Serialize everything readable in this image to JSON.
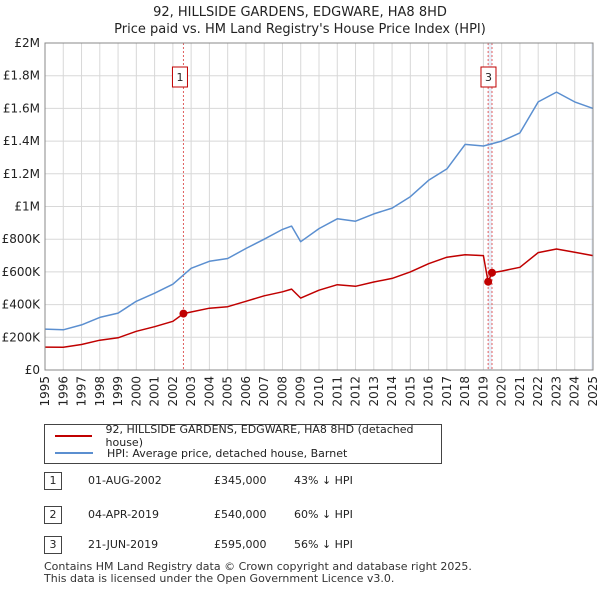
{
  "title": {
    "line1": "92, HILLSIDE GARDENS, EDGWARE, HA8 8HD",
    "line2": "Price paid vs. HM Land Registry's House Price Index (HPI)"
  },
  "colors": {
    "property": "#c00000",
    "hpi": "#5b8fd0",
    "marker_line": "#e06060",
    "grid": "#d8d8d8",
    "shade": "#e8eef8"
  },
  "chart_data": {
    "type": "line",
    "title": "Price paid vs. HM Land Registry's House Price Index (HPI)",
    "xlabel": "",
    "ylabel": "",
    "xlim": [
      1995,
      2025
    ],
    "ylim": [
      0,
      2000000
    ],
    "y_ticks": [
      {
        "value": 0,
        "label": "£0"
      },
      {
        "value": 200000,
        "label": "£200K"
      },
      {
        "value": 400000,
        "label": "£400K"
      },
      {
        "value": 600000,
        "label": "£600K"
      },
      {
        "value": 800000,
        "label": "£800K"
      },
      {
        "value": 1000000,
        "label": "£1M"
      },
      {
        "value": 1200000,
        "label": "£1.2M"
      },
      {
        "value": 1400000,
        "label": "£1.4M"
      },
      {
        "value": 1600000,
        "label": "£1.6M"
      },
      {
        "value": 1800000,
        "label": "£1.8M"
      },
      {
        "value": 2000000,
        "label": "£2M"
      }
    ],
    "x_ticks": [
      "1995",
      "1996",
      "1997",
      "1998",
      "1999",
      "2000",
      "2001",
      "2002",
      "2003",
      "2004",
      "2005",
      "2006",
      "2007",
      "2008",
      "2009",
      "2010",
      "2011",
      "2012",
      "2013",
      "2014",
      "2015",
      "2016",
      "2017",
      "2018",
      "2019",
      "2020",
      "2021",
      "2022",
      "2023",
      "2024",
      "2025"
    ],
    "series": [
      {
        "name": "92, HILLSIDE GARDENS, EDGWARE, HA8 8HD (detached house)",
        "color": "#c00000",
        "x": [
          1995.0,
          1996.0,
          1997.0,
          1998.0,
          1999.0,
          2000.0,
          2001.0,
          2002.0,
          2002.58,
          2003.0,
          2004.0,
          2005.0,
          2006.0,
          2007.0,
          2008.0,
          2008.5,
          2009.0,
          2010.0,
          2011.0,
          2012.0,
          2013.0,
          2014.0,
          2015.0,
          2016.0,
          2017.0,
          2018.0,
          2019.0,
          2019.26,
          2019.27,
          2019.46,
          2019.47,
          2020.0,
          2021.0,
          2022.0,
          2023.0,
          2024.0,
          2025.0
        ],
        "values": [
          140000,
          139000,
          156000,
          182000,
          197000,
          237000,
          265000,
          298000,
          345000,
          355000,
          378000,
          387000,
          420000,
          454000,
          478000,
          495000,
          440000,
          488000,
          522000,
          512000,
          538000,
          560000,
          600000,
          650000,
          690000,
          705000,
          700000,
          540000,
          540000,
          595000,
          595000,
          605000,
          628000,
          718000,
          740000,
          720000,
          700000
        ]
      },
      {
        "name": "HPI: Average price, detached house, Barnet",
        "color": "#5b8fd0",
        "x": [
          1995.0,
          1996.0,
          1997.0,
          1998.0,
          1999.0,
          2000.0,
          2001.0,
          2002.0,
          2003.0,
          2004.0,
          2005.0,
          2006.0,
          2007.0,
          2008.0,
          2008.5,
          2009.0,
          2010.0,
          2011.0,
          2012.0,
          2013.0,
          2014.0,
          2015.0,
          2016.0,
          2017.0,
          2018.0,
          2019.0,
          2020.0,
          2021.0,
          2022.0,
          2023.0,
          2024.0,
          2025.0
        ],
        "values": [
          250000,
          246000,
          276000,
          322000,
          348000,
          420000,
          470000,
          525000,
          622000,
          665000,
          682000,
          743000,
          800000,
          860000,
          880000,
          785000,
          865000,
          925000,
          910000,
          955000,
          990000,
          1060000,
          1160000,
          1230000,
          1380000,
          1370000,
          1400000,
          1450000,
          1640000,
          1700000,
          1640000,
          1600000
        ]
      }
    ],
    "sales": [
      {
        "id": "1",
        "x": 2002.58,
        "value": 345000
      },
      {
        "id": "2",
        "x": 2019.26,
        "value": 540000
      },
      {
        "id": "3",
        "x": 2019.47,
        "value": 595000
      }
    ],
    "marker_labels": [
      {
        "id": "1",
        "x": 2002.58
      },
      {
        "id": "3",
        "x": 2019.47
      }
    ]
  },
  "legend": {
    "property_label": "92, HILLSIDE GARDENS, EDGWARE, HA8 8HD (detached house)",
    "hpi_label": "HPI: Average price, detached house, Barnet"
  },
  "sales_table": [
    {
      "num": "1",
      "date": "01-AUG-2002",
      "price": "£345,000",
      "hpi": "43% ↓ HPI"
    },
    {
      "num": "2",
      "date": "04-APR-2019",
      "price": "£540,000",
      "hpi": "60% ↓ HPI"
    },
    {
      "num": "3",
      "date": "21-JUN-2019",
      "price": "£595,000",
      "hpi": "56% ↓ HPI"
    }
  ],
  "footer": {
    "line1": "Contains HM Land Registry data © Crown copyright and database right 2025.",
    "line2": "This data is licensed under the Open Government Licence v3.0."
  }
}
